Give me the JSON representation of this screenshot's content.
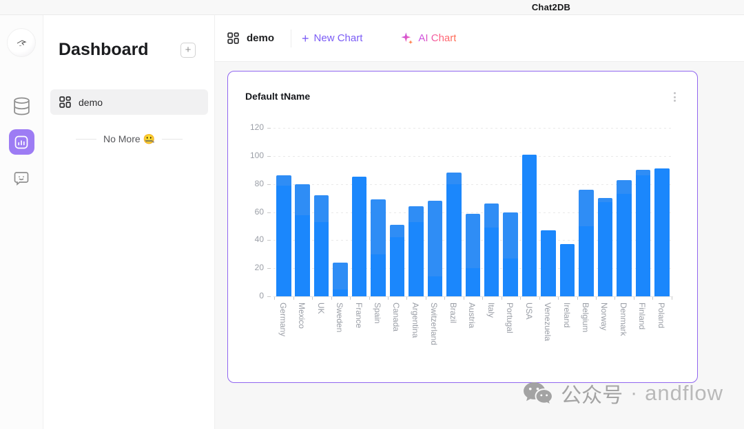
{
  "topbar": {
    "title": "Chat2DB"
  },
  "sidebar": {
    "icons": [
      {
        "name": "avatar"
      },
      {
        "name": "database"
      },
      {
        "name": "dashboard-charts",
        "active": true
      },
      {
        "name": "feedback-chat"
      }
    ]
  },
  "panel": {
    "title": "Dashboard",
    "add_label": "+",
    "items": [
      {
        "label": "demo"
      }
    ],
    "end_text": "No More 🤐"
  },
  "tabbar": {
    "active_tab": "demo",
    "new_chart_label": "New Chart",
    "new_chart_plus": "+",
    "ai_chart_label": "AI Chart"
  },
  "card": {
    "title": "Default tName"
  },
  "chart_data": {
    "type": "bar",
    "title": "Default tName",
    "categories": [
      "Germany",
      "Mexico",
      "UK",
      "Sweden",
      "France",
      "Spain",
      "Canada",
      "Argentina",
      "Switzerland",
      "Brazil",
      "Austria",
      "Italy",
      "Portugal",
      "USA",
      "Venezuela",
      "Ireland",
      "Belgium",
      "Norway",
      "Denmark",
      "Finland",
      "Poland"
    ],
    "series": [
      {
        "name": "value",
        "values": [
          86,
          80,
          72,
          24,
          85,
          69,
          51,
          64,
          68,
          88,
          59,
          66,
          60,
          101,
          47,
          37,
          76,
          70,
          83,
          90,
          91
        ]
      },
      {
        "name": "overlay",
        "values": [
          79,
          58,
          53,
          5,
          85,
          30,
          42,
          53,
          14,
          80,
          20,
          49,
          27,
          101,
          47,
          37,
          50,
          67,
          73,
          86,
          91
        ]
      }
    ],
    "xlabel": "",
    "ylabel": "",
    "ylim": [
      0,
      120
    ],
    "yticks": [
      0,
      20,
      40,
      60,
      80,
      100,
      120
    ],
    "grid": "dashed-horizontal",
    "legend": "none",
    "bar_color": "#2f8df5",
    "bar_overlap_color": "#1b87fc"
  },
  "watermark": {
    "label": "公众号",
    "separator": "·",
    "brand": "andflow"
  },
  "colors": {
    "accent_purple": "#7b5cf5",
    "active_rail": "#9d7cf4",
    "card_border": "#9065f0",
    "ai_gradient_start": "#c44df0",
    "ai_gradient_end": "#ff6e50",
    "main_bg": "#f7f7f7"
  }
}
